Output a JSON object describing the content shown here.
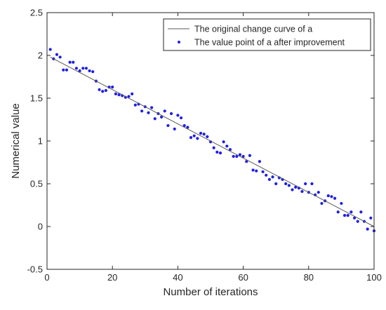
{
  "chart_data": {
    "type": "line",
    "title": "",
    "xlabel": "Number of iterations",
    "ylabel": "Numerical value",
    "xlim": [
      0,
      100
    ],
    "ylim": [
      -0.5,
      2.5
    ],
    "xticks": [
      0,
      20,
      40,
      60,
      80,
      100
    ],
    "yticks": [
      -0.5,
      0,
      0.5,
      1,
      1.5,
      2,
      2.5
    ],
    "xtick_labels": [
      "0",
      "20",
      "40",
      "60",
      "80",
      "100"
    ],
    "ytick_labels": [
      "-0.5",
      "0",
      "0.5",
      "1",
      "1.5",
      "2",
      "2.5"
    ],
    "grid": false,
    "legend_position": "top-right",
    "colors": {
      "line": "#5a5a5a",
      "points": "#1f1fe6",
      "axes": "#262626"
    },
    "series": [
      {
        "name": "The original change curve of a",
        "kind": "line",
        "x": [
          1,
          100
        ],
        "y": [
          1.98,
          0.0
        ]
      },
      {
        "name": "The value point of a after improvement",
        "kind": "scatter",
        "x": [
          1,
          2,
          3,
          4,
          5,
          6,
          7,
          8,
          9,
          10,
          11,
          12,
          13,
          14,
          15,
          16,
          17,
          18,
          19,
          20,
          21,
          22,
          23,
          24,
          25,
          26,
          27,
          28,
          29,
          30,
          31,
          32,
          33,
          34,
          35,
          36,
          37,
          38,
          39,
          40,
          41,
          42,
          43,
          44,
          45,
          46,
          47,
          48,
          49,
          50,
          51,
          52,
          53,
          54,
          55,
          56,
          57,
          58,
          59,
          60,
          61,
          62,
          63,
          64,
          65,
          66,
          67,
          68,
          69,
          70,
          71,
          72,
          73,
          74,
          75,
          76,
          77,
          78,
          79,
          80,
          81,
          82,
          83,
          84,
          85,
          86,
          87,
          88,
          89,
          90,
          91,
          92,
          93,
          94,
          95,
          96,
          97,
          98,
          99,
          100
        ],
        "y": [
          2.07,
          1.96,
          2.01,
          1.98,
          1.83,
          1.83,
          1.92,
          1.92,
          1.85,
          1.82,
          1.85,
          1.85,
          1.82,
          1.81,
          1.7,
          1.6,
          1.58,
          1.59,
          1.63,
          1.63,
          1.55,
          1.54,
          1.53,
          1.51,
          1.52,
          1.55,
          1.42,
          1.43,
          1.35,
          1.4,
          1.33,
          1.39,
          1.26,
          1.32,
          1.28,
          1.35,
          1.18,
          1.32,
          1.14,
          1.3,
          1.27,
          1.18,
          1.16,
          1.04,
          1.06,
          1.03,
          1.09,
          1.08,
          1.05,
          0.99,
          0.92,
          0.87,
          0.86,
          0.99,
          0.94,
          0.9,
          0.82,
          0.82,
          0.84,
          0.82,
          0.76,
          0.83,
          0.66,
          0.65,
          0.76,
          0.64,
          0.6,
          0.55,
          0.58,
          0.5,
          0.57,
          0.55,
          0.5,
          0.48,
          0.43,
          0.46,
          0.45,
          0.41,
          0.5,
          0.4,
          0.5,
          0.37,
          0.4,
          0.27,
          0.3,
          0.36,
          0.35,
          0.33,
          0.17,
          0.27,
          0.13,
          0.13,
          0.17,
          0.1,
          0.06,
          0.17,
          0.06,
          -0.03,
          0.1,
          -0.05
        ]
      }
    ]
  }
}
